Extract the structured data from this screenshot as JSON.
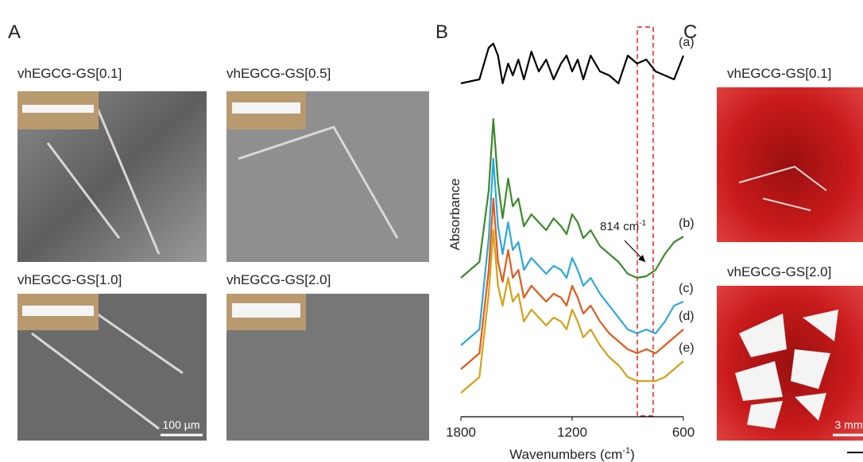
{
  "panels": [
    {
      "label": "A",
      "images": [
        {
          "title": "vhEGCG-GS[0.1]"
        },
        {
          "title": "vhEGCG-GS[0.5]"
        },
        {
          "title": "vhEGCG-GS[1.0]"
        },
        {
          "title": "vhEGCG-GS[2.0]"
        }
      ],
      "scale_bar": "100 µm"
    },
    {
      "label": "B"
    },
    {
      "label": "C",
      "images": [
        {
          "title": "vhEGCG-GS[0.1]"
        },
        {
          "title": "vhEGCG-GS[2.0]"
        }
      ],
      "scale_bar": "3 mm"
    }
  ],
  "chart_data": {
    "type": "line",
    "xlabel": {
      "text": "Wavenumbers (cm",
      "sup": "-1",
      "end": ")"
    },
    "ylabel": "Absorbance",
    "annotation": {
      "text": "814 cm",
      "sup": "-1"
    },
    "x": [
      1800,
      1700,
      1650,
      1625,
      1600,
      1575,
      1545,
      1520,
      1490,
      1460,
      1420,
      1380,
      1340,
      1300,
      1260,
      1230,
      1200,
      1170,
      1140,
      1100,
      1050,
      1000,
      950,
      900,
      850,
      800,
      750,
      700,
      650,
      600
    ],
    "xlim": [
      1800,
      600
    ],
    "xticks": [
      1800,
      1200,
      600
    ],
    "ylim": [
      0,
      450
    ],
    "series": [
      {
        "name": "(a)",
        "color": "#000000",
        "values": [
          395,
          400,
          440,
          445,
          430,
          395,
          420,
          405,
          425,
          400,
          435,
          410,
          425,
          400,
          420,
          430,
          410,
          425,
          400,
          430,
          410,
          405,
          395,
          430,
          420,
          425,
          410,
          405,
          400,
          430
        ]
      },
      {
        "name": "(b)",
        "color": "#3a8a2a",
        "values": [
          150,
          170,
          260,
          350,
          270,
          225,
          275,
          240,
          250,
          215,
          230,
          220,
          210,
          225,
          215,
          205,
          230,
          220,
          200,
          210,
          190,
          180,
          170,
          155,
          150,
          152,
          160,
          180,
          195,
          202
        ]
      },
      {
        "name": "(c)",
        "color": "#2aa7e0",
        "values": [
          65,
          85,
          200,
          300,
          215,
          180,
          220,
          185,
          195,
          160,
          175,
          165,
          155,
          165,
          160,
          150,
          175,
          160,
          140,
          150,
          130,
          115,
          100,
          85,
          80,
          85,
          80,
          95,
          115,
          120
        ]
      },
      {
        "name": "(d)",
        "color": "#e05a1a",
        "values": [
          35,
          55,
          160,
          250,
          170,
          145,
          185,
          150,
          160,
          125,
          140,
          130,
          120,
          130,
          125,
          115,
          140,
          125,
          105,
          115,
          95,
          80,
          70,
          60,
          55,
          60,
          55,
          65,
          75,
          85
        ]
      },
      {
        "name": "(e)",
        "color": "#d4a017",
        "values": [
          5,
          25,
          130,
          210,
          140,
          115,
          150,
          120,
          130,
          95,
          110,
          100,
          90,
          100,
          95,
          85,
          110,
          95,
          75,
          85,
          65,
          50,
          40,
          25,
          20,
          20,
          20,
          25,
          35,
          45
        ]
      }
    ]
  }
}
